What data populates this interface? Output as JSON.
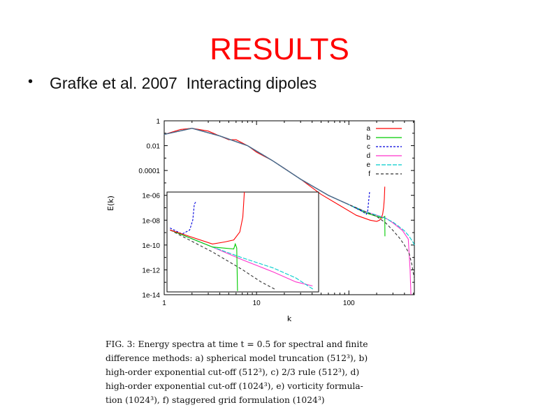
{
  "slide": {
    "title": "RESULTS",
    "bullet_symbol": "•",
    "bullet_text": "Grafke et al. 2007  Interacting dipoles",
    "title_color": "#ff0000"
  },
  "caption_lines": [
    "FIG. 3:  Energy spectra at time t = 0.5 for spectral and finite",
    "difference methods: a) spherical model truncation (512³), b)",
    "high-order exponential cut-off (512³), c) 2/3 rule (512³), d)",
    "high-order exponential cut-off (1024³), e) vorticity formula-",
    "tion (1024³), f) staggered grid formulation (1024³)"
  ],
  "chart_data": {
    "type": "line",
    "xscale": "log",
    "yscale": "log",
    "xlim": [
      1,
      512
    ],
    "ylim": [
      1e-14,
      1
    ],
    "xlabel": "k",
    "ylabel": "E(k)",
    "x_tick_labels": [
      "1",
      "10",
      "100"
    ],
    "y_tick_labels": [
      "1",
      "0.01",
      "0.0001",
      "1e-06",
      "1e-08",
      "1e-10",
      "1e-12",
      "1e-14"
    ],
    "legend_position": "top-right",
    "legend_labels": [
      "a",
      "b",
      "c",
      "d",
      "e",
      "f"
    ],
    "grid": false,
    "series": [
      {
        "name": "a",
        "color": "#ff0000",
        "x": [
          1,
          1.5,
          2,
          3,
          4,
          5,
          6,
          8,
          10,
          15,
          20,
          30,
          50,
          80,
          120,
          170,
          200,
          215,
          225,
          232,
          238,
          242,
          245
        ],
        "y": [
          0.08,
          0.2,
          0.25,
          0.15,
          0.06,
          0.03,
          0.03,
          0.01,
          0.003,
          0.0006,
          0.00015,
          2e-05,
          1.2e-06,
          1.5e-07,
          2.5e-08,
          1e-08,
          8e-09,
          1e-08,
          1.6e-08,
          3e-08,
          1e-07,
          5e-07,
          5e-06
        ]
      },
      {
        "name": "b",
        "color": "#00cc00",
        "x": [
          1,
          2,
          4,
          8,
          15,
          30,
          60,
          100,
          150,
          200,
          230,
          245,
          246
        ],
        "y": [
          0.08,
          0.25,
          0.06,
          0.01,
          0.0006,
          2e-05,
          1e-06,
          1.8e-07,
          4e-08,
          2e-08,
          1.5e-08,
          2e-08,
          5e-10
        ]
      },
      {
        "name": "c",
        "color": "#0000dd",
        "x": [
          1,
          2,
          4,
          8,
          15,
          30,
          60,
          100,
          140,
          155,
          160,
          164,
          168
        ],
        "y": [
          0.08,
          0.25,
          0.06,
          0.01,
          0.0006,
          2e-05,
          1e-06,
          1.8e-07,
          5e-08,
          3e-08,
          6e-08,
          4e-07,
          2e-06
        ]
      },
      {
        "name": "d",
        "color": "#ff33cc",
        "x": [
          1,
          2,
          4,
          8,
          15,
          30,
          60,
          100,
          150,
          200,
          250,
          300,
          380,
          440,
          460,
          470
        ],
        "y": [
          0.08,
          0.25,
          0.06,
          0.01,
          0.0006,
          2e-05,
          1e-06,
          1.8e-07,
          5e-08,
          2.5e-08,
          1.5e-08,
          6e-09,
          1.5e-09,
          3e-10,
          1e-12,
          1e-14
        ]
      },
      {
        "name": "e",
        "color": "#00cccc",
        "x": [
          1,
          2,
          4,
          8,
          15,
          30,
          60,
          100,
          150,
          200,
          250,
          300,
          350,
          400,
          450,
          500,
          512
        ],
        "y": [
          0.08,
          0.25,
          0.06,
          0.01,
          0.0006,
          2e-05,
          1e-06,
          1.8e-07,
          5e-08,
          2.5e-08,
          1.4e-08,
          7e-09,
          3e-09,
          1.4e-09,
          5e-10,
          1.5e-10,
          1e-10
        ]
      },
      {
        "name": "f",
        "color": "#333333",
        "x": [
          1,
          2,
          4,
          8,
          15,
          30,
          60,
          100,
          150,
          200,
          250,
          300,
          350,
          400,
          450,
          480,
          500,
          512
        ],
        "y": [
          0.08,
          0.25,
          0.06,
          0.01,
          0.0006,
          2e-05,
          1e-06,
          1.8e-07,
          5e-08,
          2e-08,
          6e-09,
          1.5e-09,
          4e-10,
          1e-10,
          2e-11,
          3e-12,
          5e-13,
          2e-13
        ]
      }
    ]
  }
}
